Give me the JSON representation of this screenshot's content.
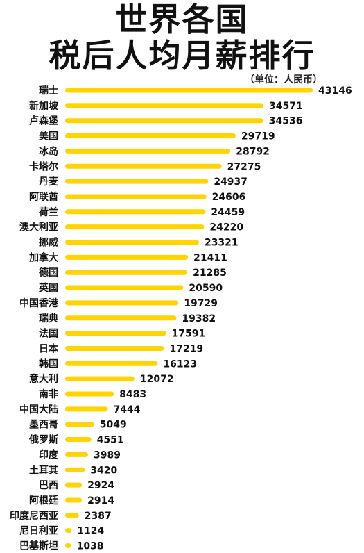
{
  "title_line1": "世界各国",
  "title_line2": "税后人均月薪排行",
  "unit_note": "（单位：人民币）",
  "colors": {
    "bar": "#FFD400",
    "text": "#111111"
  },
  "chart_data": {
    "type": "bar",
    "orientation": "horizontal",
    "categories": [
      "瑞士",
      "新加坡",
      "卢森堡",
      "美国",
      "冰岛",
      "卡塔尔",
      "丹麦",
      "阿联酋",
      "荷兰",
      "澳大利亚",
      "挪威",
      "加拿大",
      "德国",
      "英国",
      "中国香港",
      "瑞典",
      "法国",
      "日本",
      "韩国",
      "意大利",
      "南非",
      "中国大陆",
      "墨西哥",
      "俄罗斯",
      "印度",
      "土耳其",
      "巴西",
      "阿根廷",
      "印度尼西亚",
      "尼日利亚",
      "巴基斯坦"
    ],
    "values": [
      43146,
      34571,
      34536,
      29719,
      28792,
      27275,
      24937,
      24606,
      24459,
      24220,
      23321,
      21411,
      21285,
      20590,
      19729,
      19382,
      17591,
      17219,
      16123,
      12072,
      8483,
      7444,
      5049,
      4551,
      3989,
      3420,
      2924,
      2914,
      2387,
      1124,
      1038
    ],
    "data_labels": [
      "43146",
      "34571",
      "34536",
      "29719",
      "28792",
      "27275",
      "24937",
      "24606",
      "24459",
      "24220",
      "23321",
      "21411",
      "21285",
      "20590",
      "19729",
      "19382",
      "17591",
      "17219",
      "16123",
      "12072",
      "8483",
      "7444",
      "5049",
      "4551",
      "3989",
      "3420",
      "2924",
      "2914",
      "2387",
      "1124",
      "1038"
    ],
    "title": "世界各国税后人均月薪排行",
    "xlabel": "",
    "ylabel": "",
    "grid": false,
    "legend": "none"
  }
}
